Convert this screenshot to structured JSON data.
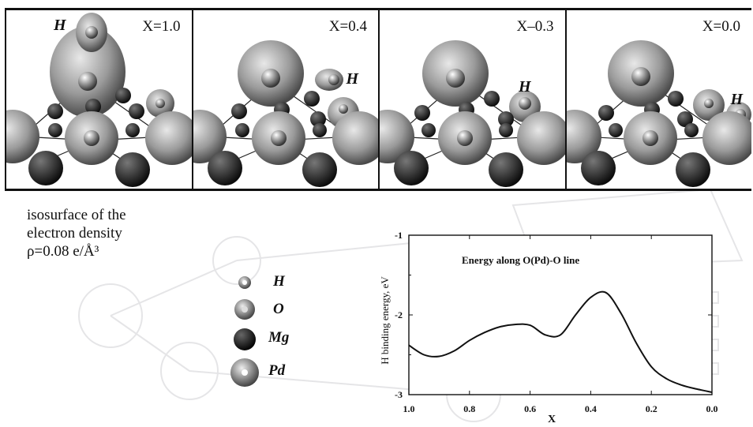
{
  "panels": [
    {
      "label": "X=1.0",
      "h_label": "H"
    },
    {
      "label": "X=0.4",
      "h_label": "H"
    },
    {
      "label": "X–0.3",
      "h_label": "H"
    },
    {
      "label": "X=0.0",
      "h_label": "H"
    }
  ],
  "caption": {
    "line1": "isosurface of the",
    "line2": "electron density",
    "line3": "ρ=0.08 e/Å³"
  },
  "legend": [
    {
      "label": "H",
      "color": "#9a9a9a"
    },
    {
      "label": "O",
      "color": "#8c8c8c"
    },
    {
      "label": "Mg",
      "color": "#1a1a1a"
    },
    {
      "label": "Pd",
      "color": "#7a7a7a"
    }
  ],
  "chart_data": {
    "type": "line",
    "title": "Energy along O(Pd)-O line",
    "xlabel": "X",
    "ylabel": "H binding energy, eV",
    "xlim": [
      1.0,
      0.0
    ],
    "ylim": [
      -3,
      -1
    ],
    "xticks": [
      "1.0",
      "0.8",
      "0.6",
      "0.4",
      "0.2",
      "0.0"
    ],
    "yticks": [
      "-1",
      "-2",
      "-3"
    ],
    "series": [
      {
        "x": [
          1.0,
          0.95,
          0.9,
          0.85,
          0.8,
          0.75,
          0.7,
          0.65,
          0.6,
          0.55,
          0.5,
          0.45,
          0.4,
          0.35,
          0.3,
          0.25,
          0.2,
          0.15,
          0.1,
          0.05,
          0.0
        ],
        "values": [
          -2.38,
          -2.5,
          -2.52,
          -2.45,
          -2.32,
          -2.22,
          -2.15,
          -2.12,
          -2.13,
          -2.25,
          -2.25,
          -2.0,
          -1.78,
          -1.72,
          -1.98,
          -2.35,
          -2.65,
          -2.8,
          -2.88,
          -2.93,
          -2.97
        ]
      }
    ]
  }
}
